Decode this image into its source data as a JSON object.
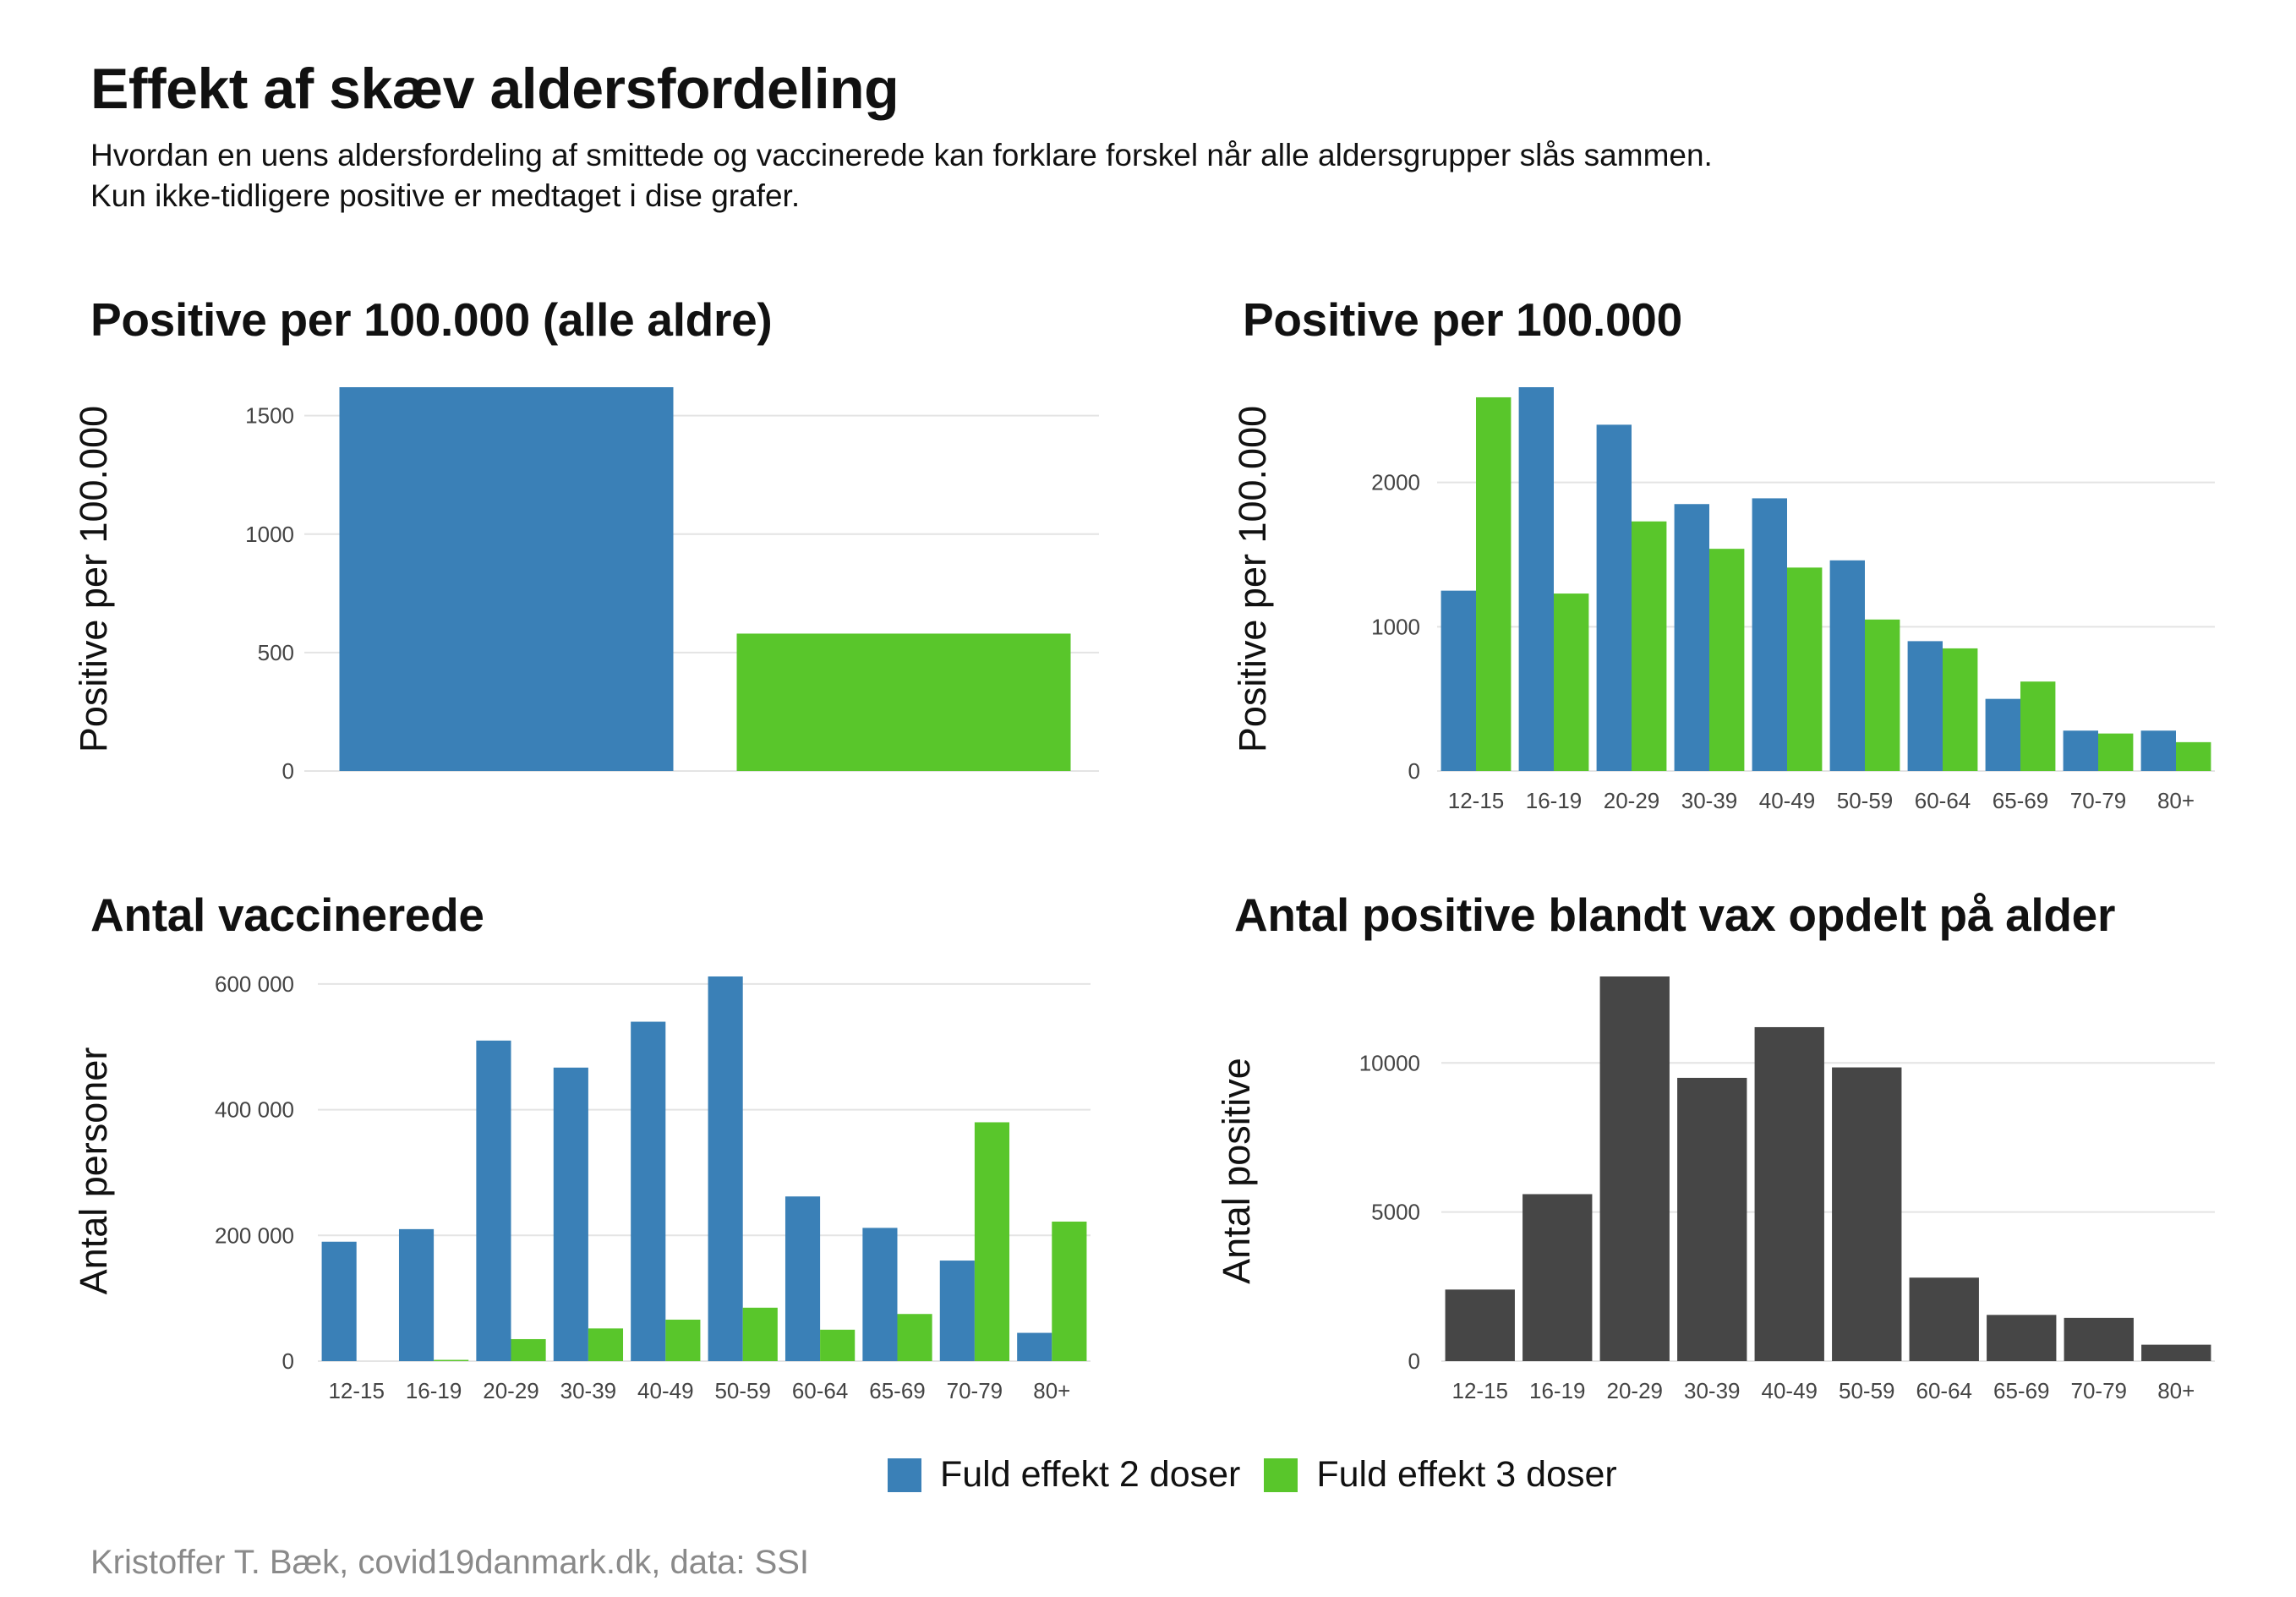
{
  "title": "Effekt af skæv aldersfordeling",
  "subtitle_lines": [
    "Hvordan en uens aldersfordeling af smittede og vaccinerede kan forklare forskel når alle aldersgrupper slås sammen.",
    "Kun ikke-tidligere positive er medtaget i dise grafer."
  ],
  "colors": {
    "two_doses": "#3a80b7",
    "three_doses": "#59c62b",
    "total": "#464646"
  },
  "legend": [
    {
      "label": "Fuld effekt 2 doser",
      "color": "#3a80b7"
    },
    {
      "label": "Fuld effekt 3 doser",
      "color": "#59c62b"
    }
  ],
  "caption": "Kristoffer T. Bæk, covid19danmark.dk, data: SSI",
  "chart_data": [
    {
      "id": "overall",
      "type": "bar",
      "title": "Positive per 100.000 (alle aldre)",
      "ylabel": "Positive per 100.000",
      "xlabel": "",
      "categories": [
        "",
        ""
      ],
      "series": [
        {
          "values": [
            1620,
            580
          ],
          "colors": [
            "#3a80b7",
            "#59c62b"
          ]
        }
      ],
      "yticks": [
        0,
        500,
        1000,
        1500
      ],
      "ytick_labels": [
        "0",
        "500",
        "1000",
        "1500"
      ],
      "ylim": [
        0,
        1620
      ],
      "grid": true
    },
    {
      "id": "per_age",
      "type": "bar",
      "title": "Positive per 100.000",
      "ylabel": "Positive per 100.000",
      "xlabel": "",
      "categories": [
        "12-15",
        "16-19",
        "20-29",
        "30-39",
        "40-49",
        "50-59",
        "60-64",
        "65-69",
        "70-79",
        "80+"
      ],
      "series": [
        {
          "name": "Fuld effekt 2 doser",
          "color": "#3a80b7",
          "values": [
            1250,
            2660,
            2400,
            1850,
            1890,
            1460,
            900,
            500,
            280,
            280
          ]
        },
        {
          "name": "Fuld effekt 3 doser",
          "color": "#59c62b",
          "values": [
            2590,
            1230,
            1730,
            1540,
            1410,
            1050,
            850,
            620,
            260,
            200
          ]
        }
      ],
      "yticks": [
        0,
        1000,
        2000
      ],
      "ytick_labels": [
        "0",
        "1000",
        "2000"
      ],
      "ylim": [
        0,
        2660
      ],
      "grid": true
    },
    {
      "id": "vaccinated",
      "type": "bar",
      "title": "Antal vaccinerede",
      "ylabel": "Antal personer",
      "xlabel": "",
      "categories": [
        "12-15",
        "16-19",
        "20-29",
        "30-39",
        "40-49",
        "50-59",
        "60-64",
        "65-69",
        "70-79",
        "80+"
      ],
      "series": [
        {
          "name": "Fuld effekt 2 doser",
          "color": "#3a80b7",
          "values": [
            190000,
            210000,
            510000,
            467000,
            540000,
            612000,
            262000,
            212000,
            160000,
            45000
          ]
        },
        {
          "name": "Fuld effekt 3 doser",
          "color": "#59c62b",
          "values": [
            0,
            2000,
            35000,
            52000,
            66000,
            85000,
            50000,
            75000,
            380000,
            222000
          ]
        }
      ],
      "yticks": [
        0,
        200000,
        400000,
        600000
      ],
      "ytick_labels": [
        "0",
        "200 000",
        "400 000",
        "600 000"
      ],
      "ylim": [
        0,
        612000
      ],
      "grid": true
    },
    {
      "id": "positives_by_age",
      "type": "bar",
      "title": "Antal positive blandt vax opdelt på alder",
      "ylabel": "Antal positive",
      "xlabel": "",
      "categories": [
        "12-15",
        "16-19",
        "20-29",
        "30-39",
        "40-49",
        "50-59",
        "60-64",
        "65-69",
        "70-79",
        "80+"
      ],
      "series": [
        {
          "color": "#464646",
          "values": [
            2400,
            5600,
            12900,
            9500,
            11200,
            9850,
            2800,
            1550,
            1450,
            550
          ]
        }
      ],
      "yticks": [
        0,
        5000,
        10000
      ],
      "ytick_labels": [
        "0",
        "5000",
        "10000"
      ],
      "ylim": [
        0,
        12900
      ],
      "grid": true
    }
  ]
}
